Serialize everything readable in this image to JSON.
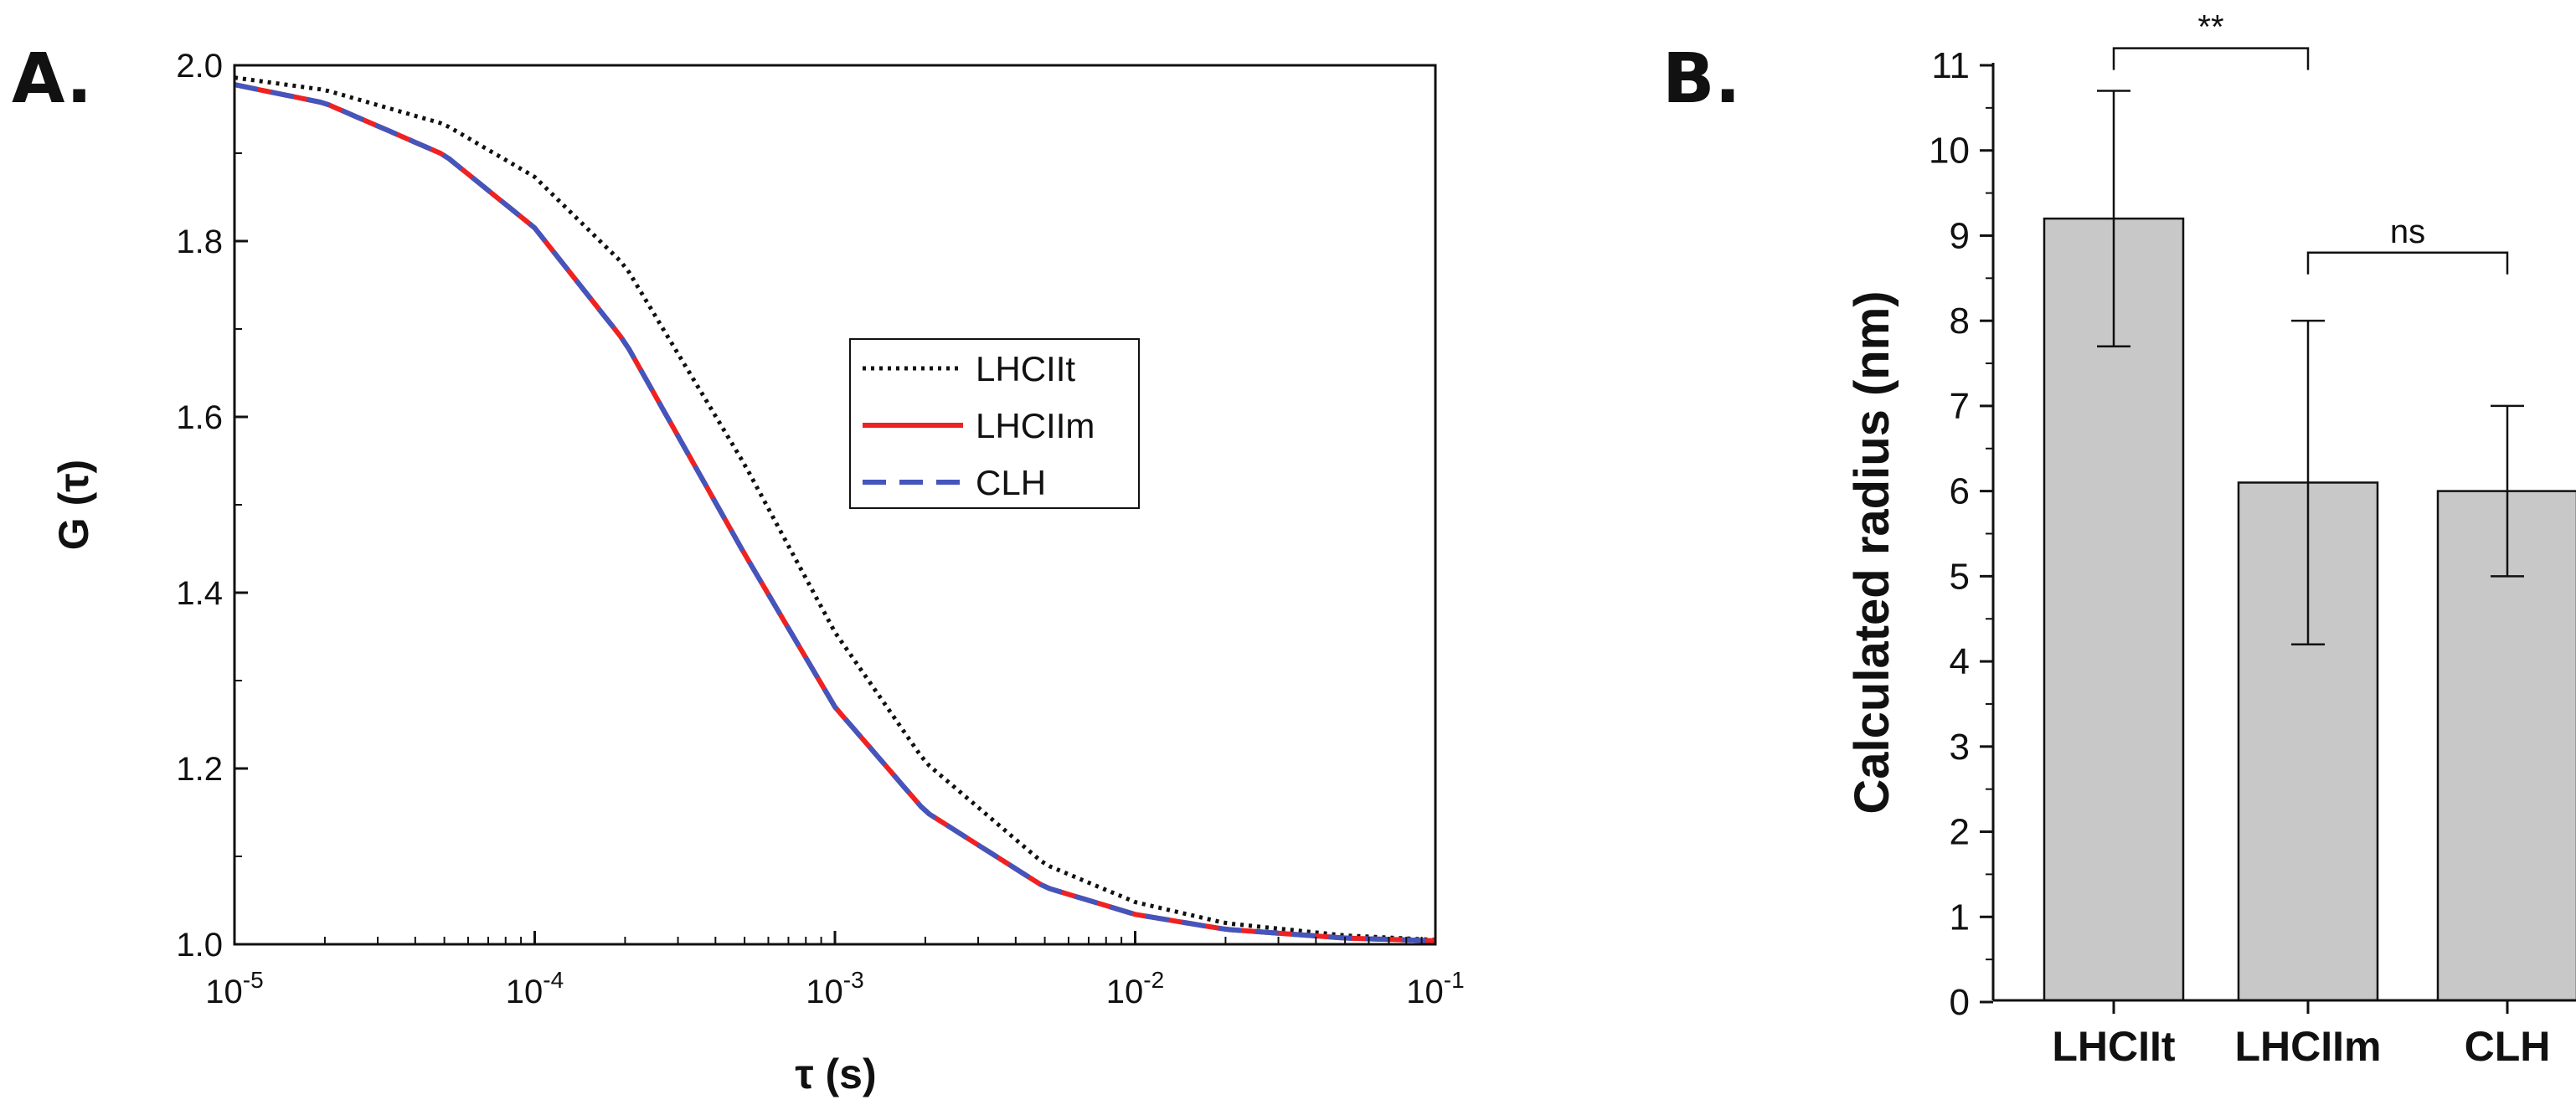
{
  "panel_a_letter": "A.",
  "panel_b_letter": "B.",
  "chart_data": [
    {
      "type": "line",
      "title": "",
      "xlabel": "τ (s)",
      "ylabel": "G (τ)",
      "xscale": "log",
      "xlim": [
        1e-05,
        0.1
      ],
      "ylim": [
        1.0,
        2.0
      ],
      "x_ticks": [
        {
          "base": "10",
          "exp": "-5"
        },
        {
          "base": "10",
          "exp": "-4"
        },
        {
          "base": "10",
          "exp": "-3"
        },
        {
          "base": "10",
          "exp": "-2"
        },
        {
          "base": "10",
          "exp": "-1"
        }
      ],
      "y_ticks": [
        "1.0",
        "1.2",
        "1.4",
        "1.6",
        "1.8",
        "2.0"
      ],
      "legend_position": "center-right",
      "series": [
        {
          "name": "LHCIIt",
          "style": "dotted",
          "color": "#111111",
          "x": [
            1e-05,
            2e-05,
            5e-05,
            0.0001,
            0.0002,
            0.0005,
            0.001,
            0.002,
            0.005,
            0.01,
            0.02,
            0.05,
            0.1
          ],
          "y": [
            1.986,
            1.972,
            1.933,
            1.873,
            1.772,
            1.546,
            1.355,
            1.207,
            1.091,
            1.048,
            1.024,
            1.01,
            1.005
          ]
        },
        {
          "name": "LHCIIm",
          "style": "solid",
          "color": "#ee2222",
          "x": [
            1e-05,
            2e-05,
            5e-05,
            0.0001,
            0.0002,
            0.0005,
            0.001,
            0.002,
            0.005,
            0.01,
            0.02,
            0.05,
            0.1
          ],
          "y": [
            1.978,
            1.957,
            1.898,
            1.815,
            1.685,
            1.444,
            1.27,
            1.151,
            1.065,
            1.034,
            1.017,
            1.007,
            1.004
          ]
        },
        {
          "name": "CLH",
          "style": "dashed",
          "color": "#4455bb",
          "x": [
            1e-05,
            2e-05,
            5e-05,
            0.0001,
            0.0002,
            0.0005,
            0.001,
            0.002,
            0.005,
            0.01,
            0.02,
            0.05,
            0.1
          ],
          "y": [
            1.978,
            1.957,
            1.898,
            1.815,
            1.685,
            1.444,
            1.27,
            1.151,
            1.065,
            1.034,
            1.017,
            1.007,
            1.004
          ]
        }
      ]
    },
    {
      "type": "bar",
      "title": "",
      "xlabel": "",
      "ylabel": "Calculated radius (nm)",
      "ylim": [
        0,
        11
      ],
      "y_ticks": [
        "0",
        "1",
        "2",
        "3",
        "4",
        "5",
        "6",
        "7",
        "8",
        "9",
        "10",
        "11"
      ],
      "categories": [
        "LHCIIt",
        "LHCIIm",
        "CLH"
      ],
      "values": [
        9.2,
        6.1,
        6.0
      ],
      "error_low": [
        7.7,
        4.2,
        5.0
      ],
      "error_high": [
        10.7,
        8.0,
        7.0
      ],
      "bar_color": "#c8c8c8",
      "significance": [
        {
          "from": "LHCIIt",
          "to": "LHCIIm",
          "label": "**",
          "y": 11.2
        },
        {
          "from": "LHCIIm",
          "to": "CLH",
          "label": "ns",
          "y": 8.8
        }
      ]
    }
  ]
}
